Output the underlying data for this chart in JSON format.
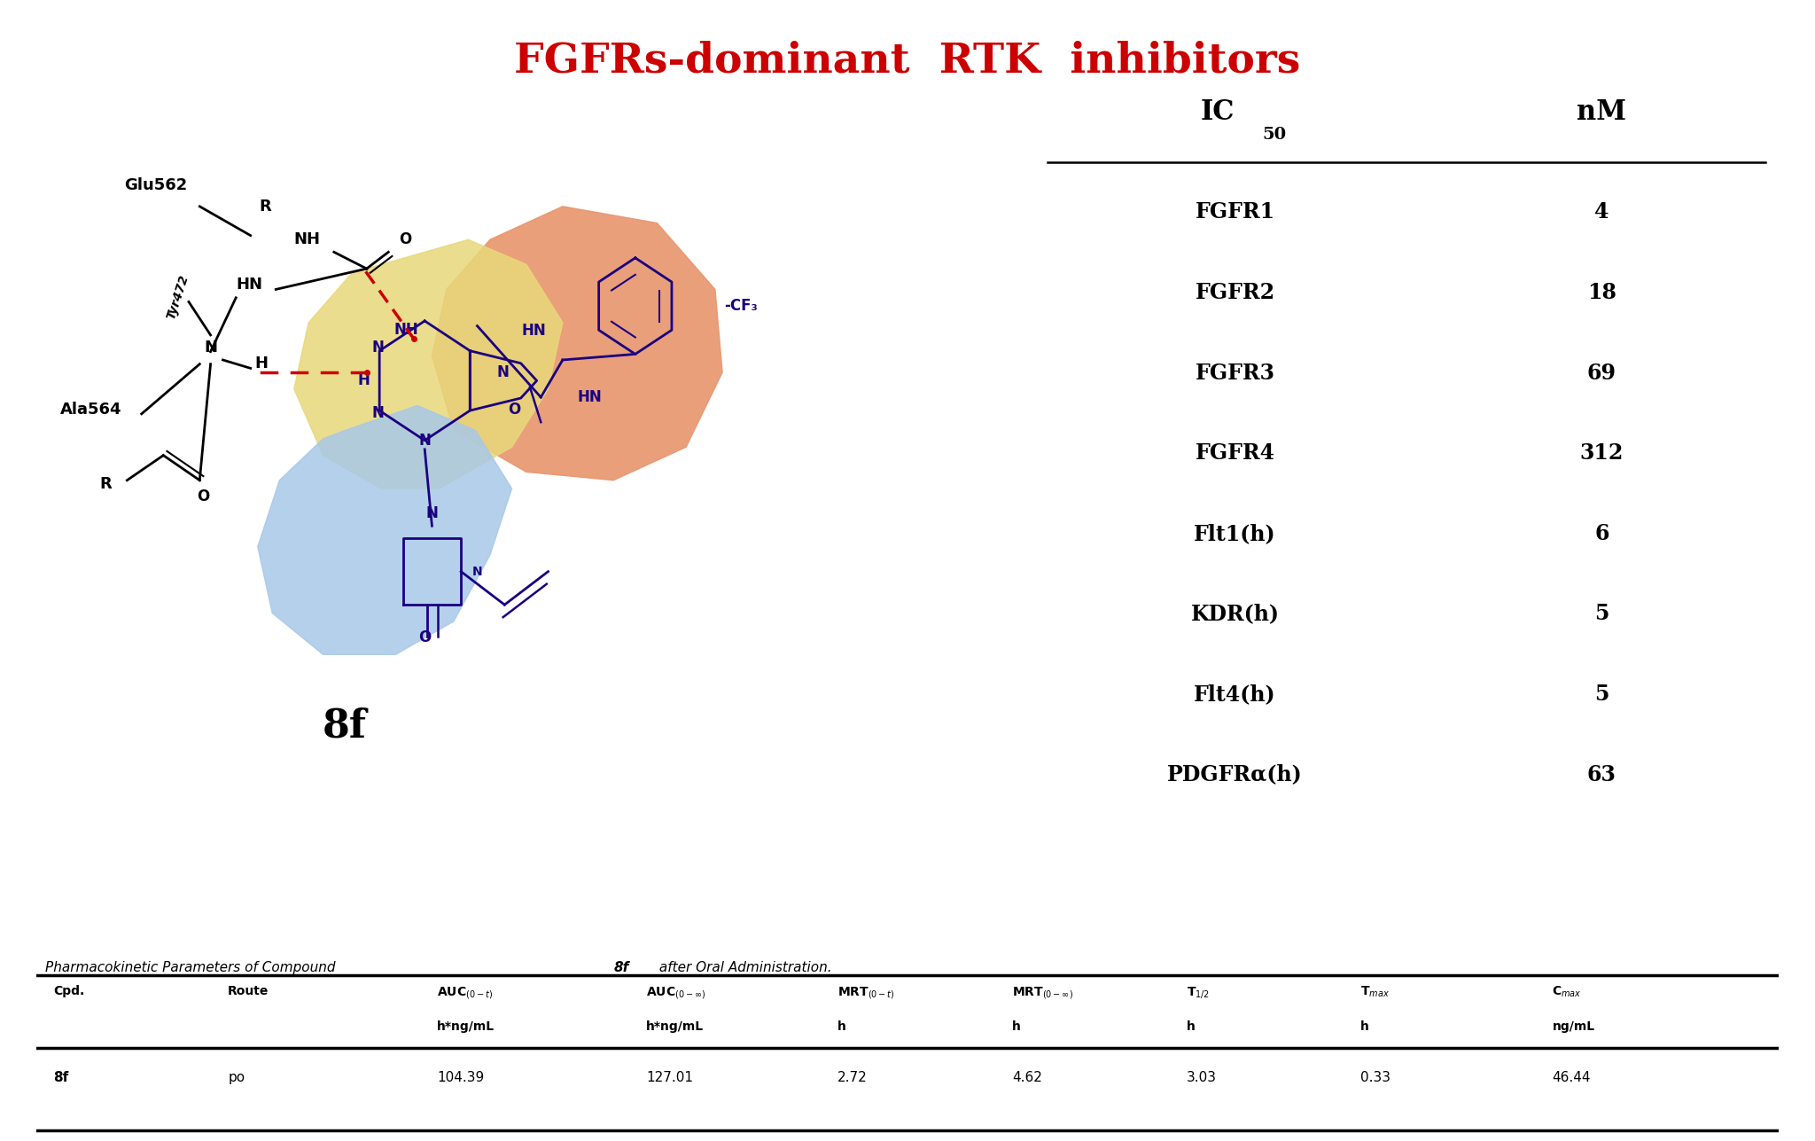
{
  "title": "FGFRs-dominant  RTK  inhibitors",
  "title_color": "#CC0000",
  "title_fontsize": 34,
  "compound_label": "8f",
  "ic50_rows": [
    [
      "FGFR1",
      "4"
    ],
    [
      "FGFR2",
      "18"
    ],
    [
      "FGFR3",
      "69"
    ],
    [
      "FGFR4",
      "312"
    ],
    [
      "Flt1(h)",
      "6"
    ],
    [
      "KDR(h)",
      "5"
    ],
    [
      "Flt4(h)",
      "5"
    ],
    [
      "PDGFRα(h)",
      "63"
    ]
  ],
  "pk_caption_normal": "Pharmacokinetic Parameters of Compound ",
  "pk_caption_bold": "8f",
  "pk_caption_end": " after Oral Administration.",
  "pk_data": [
    "8f",
    "po",
    "104.39",
    "127.01",
    "2.72",
    "4.62",
    "3.03",
    "0.33",
    "46.44"
  ],
  "orange_blob_color": "#E8956D",
  "yellow_blob_color": "#E8D87A",
  "blue_blob_color": "#A8C8E8",
  "molecule_color": "#1A0080",
  "black_color": "#000000"
}
